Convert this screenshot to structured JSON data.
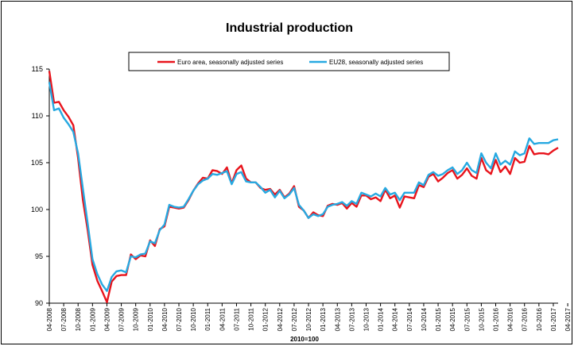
{
  "chart_data": {
    "type": "line",
    "title": "Industrial production",
    "xlabel": "2010=100",
    "ylabel": "",
    "ylim": [
      90,
      115
    ],
    "yticks": [
      90,
      95,
      100,
      105,
      110,
      115
    ],
    "grid": false,
    "legend_position": "top-center",
    "x_tick_labels": [
      "04-2008",
      "07-2008",
      "10-2008",
      "01-2009",
      "04-2009",
      "07-2009",
      "10-2009",
      "01-2010",
      "04-2010",
      "07-2010",
      "10-2010",
      "01-2011",
      "04-2011",
      "07-2011",
      "10-2011",
      "01-2012",
      "04-2012",
      "07-2012",
      "10-2012",
      "01-2013",
      "04-2013",
      "07-2013",
      "10-2013",
      "01-2014",
      "04-2014",
      "07-2014",
      "10-2014",
      "01-2015",
      "04-2015",
      "07-2015",
      "10-2015",
      "01-2016",
      "04-2016",
      "07-2016",
      "10-2016",
      "01-2017",
      "04-2017"
    ],
    "series": [
      {
        "name": "Euro area, seasonally adjusted series",
        "color": "#e8141c",
        "values": [
          114.8,
          111.4,
          111.5,
          110.6,
          109.9,
          109.0,
          105.5,
          101.0,
          97.8,
          94.1,
          92.4,
          91.3,
          90.1,
          92.3,
          92.9,
          93.0,
          93.0,
          95.2,
          94.7,
          95.1,
          95.0,
          96.7,
          96.1,
          97.9,
          98.2,
          100.3,
          100.2,
          100.1,
          100.2,
          101.0,
          102.0,
          102.8,
          103.4,
          103.3,
          104.2,
          104.1,
          103.8,
          104.5,
          102.8,
          104.2,
          104.7,
          103.3,
          102.9,
          102.9,
          102.3,
          102.1,
          102.2,
          101.6,
          102.1,
          101.3,
          101.7,
          102.5,
          100.3,
          99.9,
          99.1,
          99.7,
          99.4,
          99.3,
          100.4,
          100.6,
          100.5,
          100.7,
          100.1,
          100.7,
          100.3,
          101.5,
          101.5,
          101.1,
          101.3,
          100.9,
          102.1,
          101.2,
          101.5,
          100.2,
          101.4,
          101.3,
          101.2,
          102.6,
          102.4,
          103.5,
          103.8,
          103.0,
          103.4,
          103.9,
          104.2,
          103.3,
          103.7,
          104.4,
          103.6,
          103.3,
          105.5,
          104.2,
          103.8,
          105.3,
          104.0,
          104.6,
          103.8,
          105.5,
          105.0,
          105.1,
          106.8,
          105.9,
          106.0,
          106.0,
          105.9,
          106.3,
          106.6
        ]
      },
      {
        "name": "EU28, seasonally adjusted series",
        "color": "#27a9e1",
        "values": [
          113.6,
          110.6,
          110.8,
          109.8,
          109.1,
          108.3,
          106.0,
          102.2,
          98.5,
          94.7,
          93.1,
          92.0,
          91.3,
          92.8,
          93.4,
          93.5,
          93.3,
          95.0,
          94.9,
          95.2,
          95.3,
          96.6,
          96.4,
          97.8,
          98.4,
          100.5,
          100.3,
          100.2,
          100.3,
          101.1,
          102.0,
          102.7,
          103.1,
          103.3,
          103.8,
          103.7,
          103.9,
          104.1,
          102.7,
          103.8,
          104.0,
          103.0,
          102.9,
          102.9,
          102.4,
          101.8,
          102.1,
          101.3,
          102.0,
          101.2,
          101.6,
          102.3,
          100.5,
          99.9,
          99.1,
          99.5,
          99.3,
          99.5,
          100.3,
          100.5,
          100.6,
          100.8,
          100.4,
          100.9,
          100.6,
          101.8,
          101.6,
          101.4,
          101.7,
          101.4,
          102.3,
          101.6,
          101.8,
          101.0,
          101.8,
          101.8,
          101.8,
          102.9,
          102.6,
          103.7,
          104.0,
          103.6,
          103.8,
          104.2,
          104.5,
          103.8,
          104.2,
          105.0,
          104.2,
          103.9,
          106.0,
          105.0,
          104.4,
          106.0,
          104.8,
          105.2,
          104.8,
          106.2,
          105.8,
          106.0,
          107.6,
          107.0,
          107.1,
          107.1,
          107.1,
          107.4,
          107.5
        ]
      }
    ]
  }
}
